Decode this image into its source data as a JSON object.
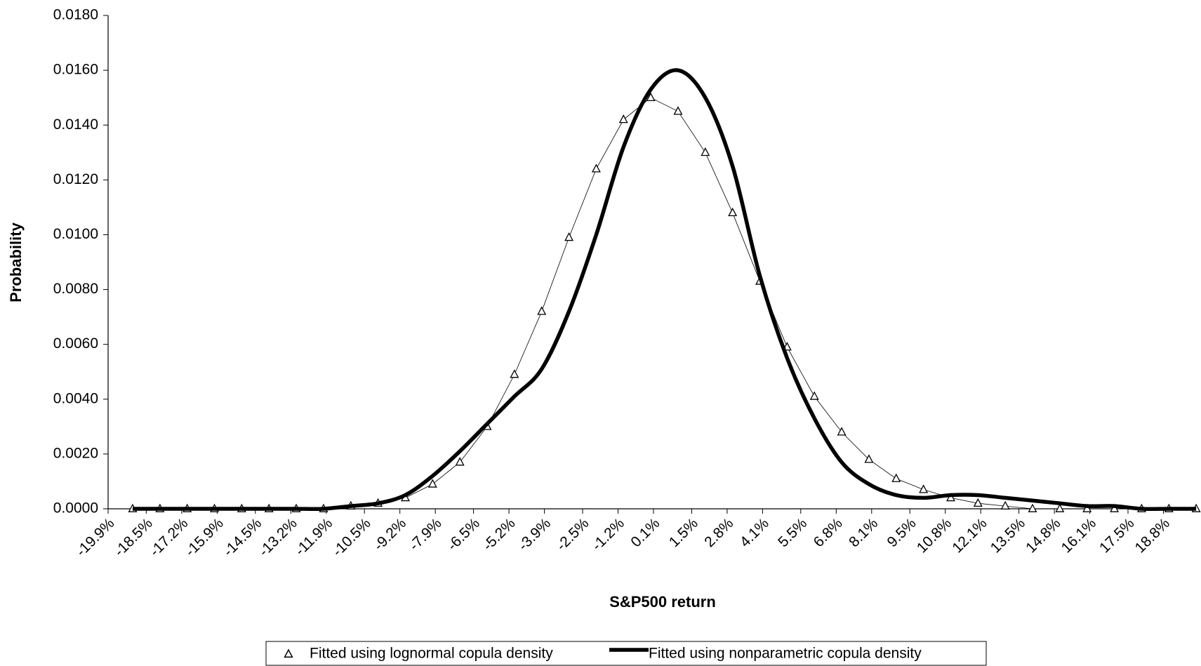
{
  "chart_data": {
    "type": "line",
    "x_label": "S&P500 return",
    "y_label": "Probability",
    "x": [
      -19,
      -18,
      -17,
      -16,
      -15,
      -14,
      -13,
      -12,
      -11,
      -10,
      -9,
      -8,
      -7,
      -6,
      -5,
      -4,
      -3,
      -2,
      -1,
      0,
      1,
      2,
      3,
      4,
      5,
      6,
      7,
      8,
      9,
      10,
      11,
      12,
      13,
      14,
      15,
      16,
      17,
      18,
      19,
      20
    ],
    "series": [
      {
        "name": "Fitted using lognormal copula density",
        "color": "#000000",
        "marker": "triangle",
        "values": [
          0,
          0,
          0,
          0,
          0,
          0,
          0,
          0,
          0.0001,
          0.0002,
          0.0004,
          0.0009,
          0.0017,
          0.003,
          0.0049,
          0.0072,
          0.0099,
          0.0124,
          0.0142,
          0.015,
          0.0145,
          0.013,
          0.0108,
          0.0083,
          0.0059,
          0.0041,
          0.0028,
          0.0018,
          0.0011,
          0.0007,
          0.0004,
          0.0002,
          0.0001,
          0,
          0,
          0,
          0,
          0,
          0,
          0
        ]
      },
      {
        "name": "Fitted using nonparametric copula density",
        "color": "#000000",
        "marker": "none",
        "values": [
          0,
          0,
          0,
          0,
          0,
          0,
          0,
          0,
          0.0001,
          0.0002,
          0.0005,
          0.0012,
          0.0021,
          0.0031,
          0.0041,
          0.0051,
          0.0072,
          0.01,
          0.0132,
          0.0153,
          0.016,
          0.015,
          0.0125,
          0.0085,
          0.0055,
          0.0033,
          0.0017,
          0.0009,
          0.0005,
          0.0004,
          0.0005,
          0.0005,
          0.0004,
          0.0003,
          0.0002,
          0.0001,
          0.0001,
          0,
          0,
          0
        ]
      }
    ],
    "xlim": [
      -19.9,
      20.1
    ],
    "xticks": [
      {
        "value": -19.9,
        "label": "-19.9%"
      },
      {
        "value": -18.5,
        "label": "-18.5%"
      },
      {
        "value": -17.2,
        "label": "-17.2%"
      },
      {
        "value": -15.9,
        "label": "-15.9%"
      },
      {
        "value": -14.5,
        "label": "-14.5%"
      },
      {
        "value": -13.2,
        "label": "-13.2%"
      },
      {
        "value": -11.9,
        "label": "-11.9%"
      },
      {
        "value": -10.5,
        "label": "-10.5%"
      },
      {
        "value": -9.2,
        "label": "-9.2%"
      },
      {
        "value": -7.9,
        "label": "-7.9%"
      },
      {
        "value": -6.5,
        "label": "-6.5%"
      },
      {
        "value": -5.2,
        "label": "-5.2%"
      },
      {
        "value": -3.9,
        "label": "-3.9%"
      },
      {
        "value": -2.5,
        "label": "-2.5%"
      },
      {
        "value": -1.2,
        "label": "-1.2%"
      },
      {
        "value": 0.1,
        "label": "0.1%"
      },
      {
        "value": 1.5,
        "label": "1.5%"
      },
      {
        "value": 2.8,
        "label": "2.8%"
      },
      {
        "value": 4.1,
        "label": "4.1%"
      },
      {
        "value": 5.5,
        "label": "5.5%"
      },
      {
        "value": 6.8,
        "label": "6.8%"
      },
      {
        "value": 8.1,
        "label": "8.1%"
      },
      {
        "value": 9.5,
        "label": "9.5%"
      },
      {
        "value": 10.8,
        "label": "10.8%"
      },
      {
        "value": 12.1,
        "label": "12.1%"
      },
      {
        "value": 13.5,
        "label": "13.5%"
      },
      {
        "value": 14.8,
        "label": "14.8%"
      },
      {
        "value": 16.1,
        "label": "16.1%"
      },
      {
        "value": 17.5,
        "label": "17.5%"
      },
      {
        "value": 18.8,
        "label": "18.8%"
      }
    ],
    "ylim": [
      0,
      0.018
    ],
    "yticks": [
      {
        "value": 0,
        "label": "0.0000"
      },
      {
        "value": 0.002,
        "label": "0.0020"
      },
      {
        "value": 0.004,
        "label": "0.0040"
      },
      {
        "value": 0.006,
        "label": "0.0060"
      },
      {
        "value": 0.008,
        "label": "0.0080"
      },
      {
        "value": 0.01,
        "label": "0.0100"
      },
      {
        "value": 0.012,
        "label": "0.0120"
      },
      {
        "value": 0.014,
        "label": "0.0140"
      },
      {
        "value": 0.016,
        "label": "0.0160"
      },
      {
        "value": 0.018,
        "label": "0.0180"
      }
    ],
    "grid": false,
    "legend": "bottom"
  }
}
